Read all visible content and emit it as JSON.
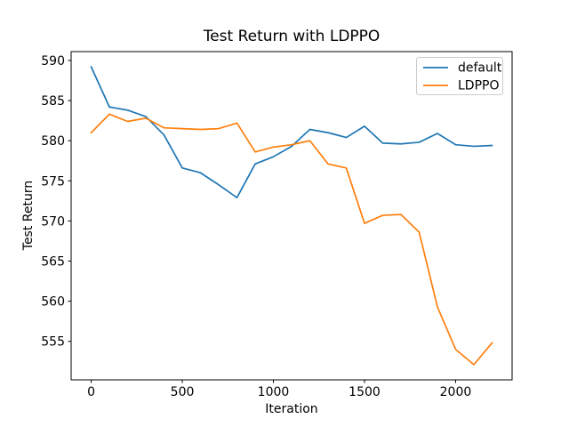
{
  "figure": {
    "title": "Test Return with LDPPO",
    "xlabel": "Iteration",
    "ylabel": "Test Return"
  },
  "legend": {
    "position": "upper right",
    "items": [
      {
        "label": "default",
        "color": "#1f77b4"
      },
      {
        "label": "LDPPO",
        "color": "#ff7f0e"
      }
    ]
  },
  "chart_data": {
    "type": "line",
    "title": "Test Return with LDPPO",
    "xlabel": "Iteration",
    "ylabel": "Test Return",
    "x": [
      0,
      100,
      200,
      300,
      400,
      500,
      600,
      700,
      800,
      900,
      1000,
      1100,
      1200,
      1300,
      1400,
      1500,
      1600,
      1700,
      1800,
      1900,
      2000,
      2100,
      2200
    ],
    "series": [
      {
        "name": "default",
        "color": "#1f77b4",
        "values": [
          589.2,
          584.2,
          583.8,
          583.0,
          580.7,
          576.6,
          576.0,
          574.5,
          572.9,
          577.1,
          578.0,
          579.3,
          581.4,
          581.0,
          580.4,
          581.8,
          579.7,
          579.6,
          579.8,
          580.9,
          579.5,
          579.3,
          579.4
        ]
      },
      {
        "name": "LDPPO",
        "color": "#ff7f0e",
        "values": [
          581.0,
          583.3,
          582.4,
          582.8,
          581.6,
          581.5,
          581.4,
          581.5,
          582.2,
          578.6,
          579.2,
          579.5,
          580.0,
          577.1,
          576.6,
          569.7,
          570.7,
          570.8,
          568.6,
          559.3,
          554.0,
          552.1,
          554.8
        ]
      }
    ],
    "xticks": [
      0,
      500,
      1000,
      1500,
      2000
    ],
    "xtick_labels": [
      "0",
      "500",
      "1000",
      "1500",
      "2000"
    ],
    "yticks": [
      555,
      560,
      565,
      570,
      575,
      580,
      585,
      590
    ],
    "ytick_labels": [
      "555",
      "560",
      "565",
      "570",
      "575",
      "580",
      "585",
      "590"
    ],
    "xlim": [
      -110,
      2310
    ],
    "ylim": [
      550.2,
      591.1
    ],
    "grid": false,
    "legend_position": "upper right",
    "background": "#ffffff",
    "spine_color": "#000000"
  }
}
